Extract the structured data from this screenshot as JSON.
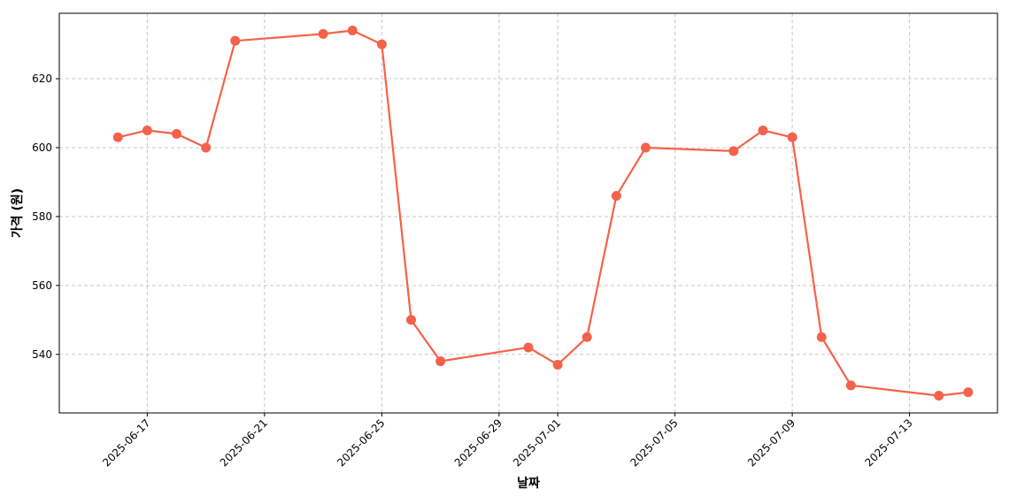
{
  "chart_data": {
    "type": "line",
    "xlabel": "날짜",
    "ylabel": "가격 (원)",
    "x_ticks": [
      "2025-06-17",
      "2025-06-21",
      "2025-06-25",
      "2025-06-29",
      "2025-07-01",
      "2025-07-05",
      "2025-07-09",
      "2025-07-13"
    ],
    "y_ticks": [
      540,
      560,
      580,
      600,
      620
    ],
    "xlim": [
      "2025-06-14",
      "2025-07-16"
    ],
    "ylim": [
      523,
      639
    ],
    "grid": true,
    "series": [
      {
        "color": "#f4624a",
        "x": [
          "2025-06-16",
          "2025-06-17",
          "2025-06-18",
          "2025-06-19",
          "2025-06-20",
          "2025-06-23",
          "2025-06-24",
          "2025-06-25",
          "2025-06-26",
          "2025-06-27",
          "2025-06-30",
          "2025-07-01",
          "2025-07-02",
          "2025-07-03",
          "2025-07-04",
          "2025-07-07",
          "2025-07-08",
          "2025-07-09",
          "2025-07-10",
          "2025-07-11",
          "2025-07-14",
          "2025-07-15"
        ],
        "y": [
          603,
          605,
          604,
          600,
          631,
          633,
          634,
          630,
          550,
          538,
          542,
          537,
          545,
          586,
          600,
          599,
          605,
          603,
          545,
          531,
          528,
          529
        ]
      }
    ]
  }
}
